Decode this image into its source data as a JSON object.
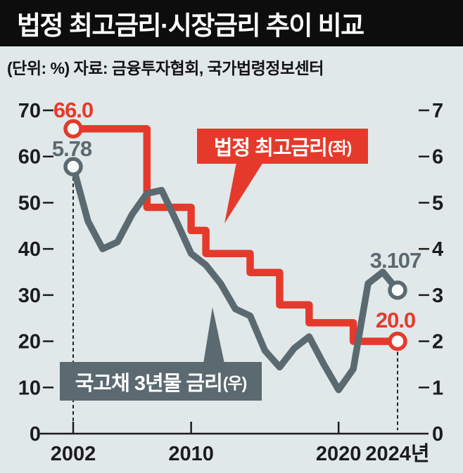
{
  "header": {
    "title": "법정 최고금리·시장금리 추이 비교",
    "subtitle": "(단위: %) 자료: 금융투자협회, 국가법령정보센터"
  },
  "colors": {
    "red": "#e53a2b",
    "slate": "#5b6a70",
    "background": "#e1e8ea",
    "header_bg": "#0d0d0d",
    "header_text": "#ffffff",
    "axis": "#1c1c1c",
    "marker_fill": "#fafcfc"
  },
  "callouts": {
    "max_rate": {
      "label": "법정 최고금리",
      "suffix": "(좌)"
    },
    "treasury": {
      "label": "국고채 3년물 금리",
      "suffix": "(우)"
    }
  },
  "point_labels": {
    "red_start": "66.0",
    "gray_start": "5.78",
    "gray_end": "3.107",
    "red_end": "20.0"
  },
  "chart_data": {
    "type": "line",
    "title": "법정 최고금리·시장금리 추이 비교",
    "unit": "%",
    "source": "금융투자협회, 국가법령정보센터",
    "x_range": [
      2002,
      2024
    ],
    "x_ticks": [
      {
        "year": 2002,
        "label": "2002",
        "tick": true
      },
      {
        "year": 2010,
        "label": "2010",
        "tick": true
      },
      {
        "year": 2020,
        "label": "2020",
        "tick": true
      },
      {
        "year": 2024,
        "label": "2024년",
        "tick": false
      }
    ],
    "left_axis": {
      "label": "법정 최고금리(좌)",
      "range": [
        0,
        70
      ],
      "ticks": [
        70,
        60,
        50,
        40,
        30,
        20,
        10,
        0
      ]
    },
    "right_axis": {
      "label": "국고채 3년물 금리(우)",
      "range": [
        0,
        7
      ],
      "ticks": [
        7,
        6,
        5,
        4,
        3,
        2,
        1,
        0
      ]
    },
    "dashed_guide_years": [
      2002,
      2024
    ],
    "grid": false,
    "series": [
      {
        "name": "법정 최고금리(좌)",
        "axis": "left",
        "line_style": "step",
        "color_key": "red",
        "start_label": "66.0",
        "end_label": "20.0",
        "steps": [
          {
            "from_year": 2002,
            "to_year": 2007,
            "value": 66
          },
          {
            "from_year": 2007,
            "to_year": 2010,
            "value": 49
          },
          {
            "from_year": 2010,
            "to_year": 2011,
            "value": 44
          },
          {
            "from_year": 2011,
            "to_year": 2014,
            "value": 39
          },
          {
            "from_year": 2014,
            "to_year": 2016,
            "value": 34.9
          },
          {
            "from_year": 2016,
            "to_year": 2018,
            "value": 27.9
          },
          {
            "from_year": 2018,
            "to_year": 2021,
            "value": 24
          },
          {
            "from_year": 2021,
            "to_year": 2024,
            "value": 20
          }
        ]
      },
      {
        "name": "국고채 3년물 금리(우)",
        "axis": "right",
        "line_style": "line",
        "color_key": "slate",
        "start_label": "5.78",
        "end_label": "3.107",
        "years": [
          2002,
          2003,
          2004,
          2005,
          2006,
          2007,
          2008,
          2009,
          2010,
          2011,
          2012,
          2013,
          2014,
          2015,
          2016,
          2017,
          2018,
          2019,
          2020,
          2021,
          2022,
          2023,
          2024
        ],
        "values": [
          5.78,
          4.6,
          4.0,
          4.15,
          4.75,
          5.2,
          5.27,
          4.6,
          3.9,
          3.65,
          3.25,
          2.7,
          2.55,
          1.8,
          1.44,
          1.85,
          2.1,
          1.5,
          0.95,
          1.4,
          3.25,
          3.5,
          3.107
        ]
      }
    ]
  }
}
